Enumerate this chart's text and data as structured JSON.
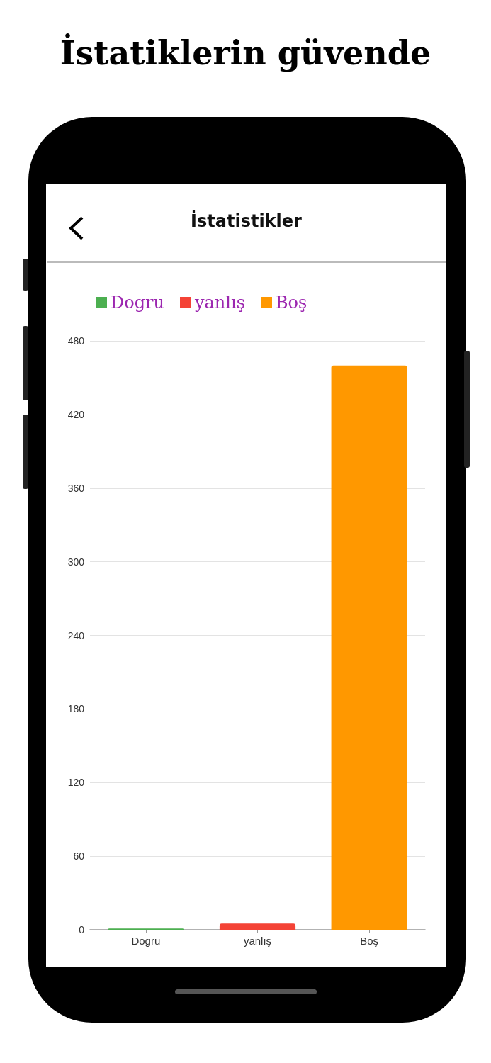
{
  "chart_data": {
    "type": "bar",
    "title": "İstatiklerin güvende",
    "subtitle": "İstatistikler",
    "categories": [
      "Dogru",
      "yanlış",
      "Boş"
    ],
    "series": [
      {
        "name": "Dogru",
        "color": "#4caf50",
        "values": [
          1,
          null,
          null
        ]
      },
      {
        "name": "yanlış",
        "color": "#f44336",
        "values": [
          null,
          5,
          null
        ]
      },
      {
        "name": "Boş",
        "color": "#ff9800",
        "values": [
          null,
          null,
          460
        ]
      }
    ],
    "stacked": true,
    "ylim": [
      0,
      480
    ],
    "yticks": [
      0,
      60,
      120,
      180,
      240,
      300,
      360,
      420,
      480
    ],
    "grid": "y",
    "legend": "top left"
  }
}
